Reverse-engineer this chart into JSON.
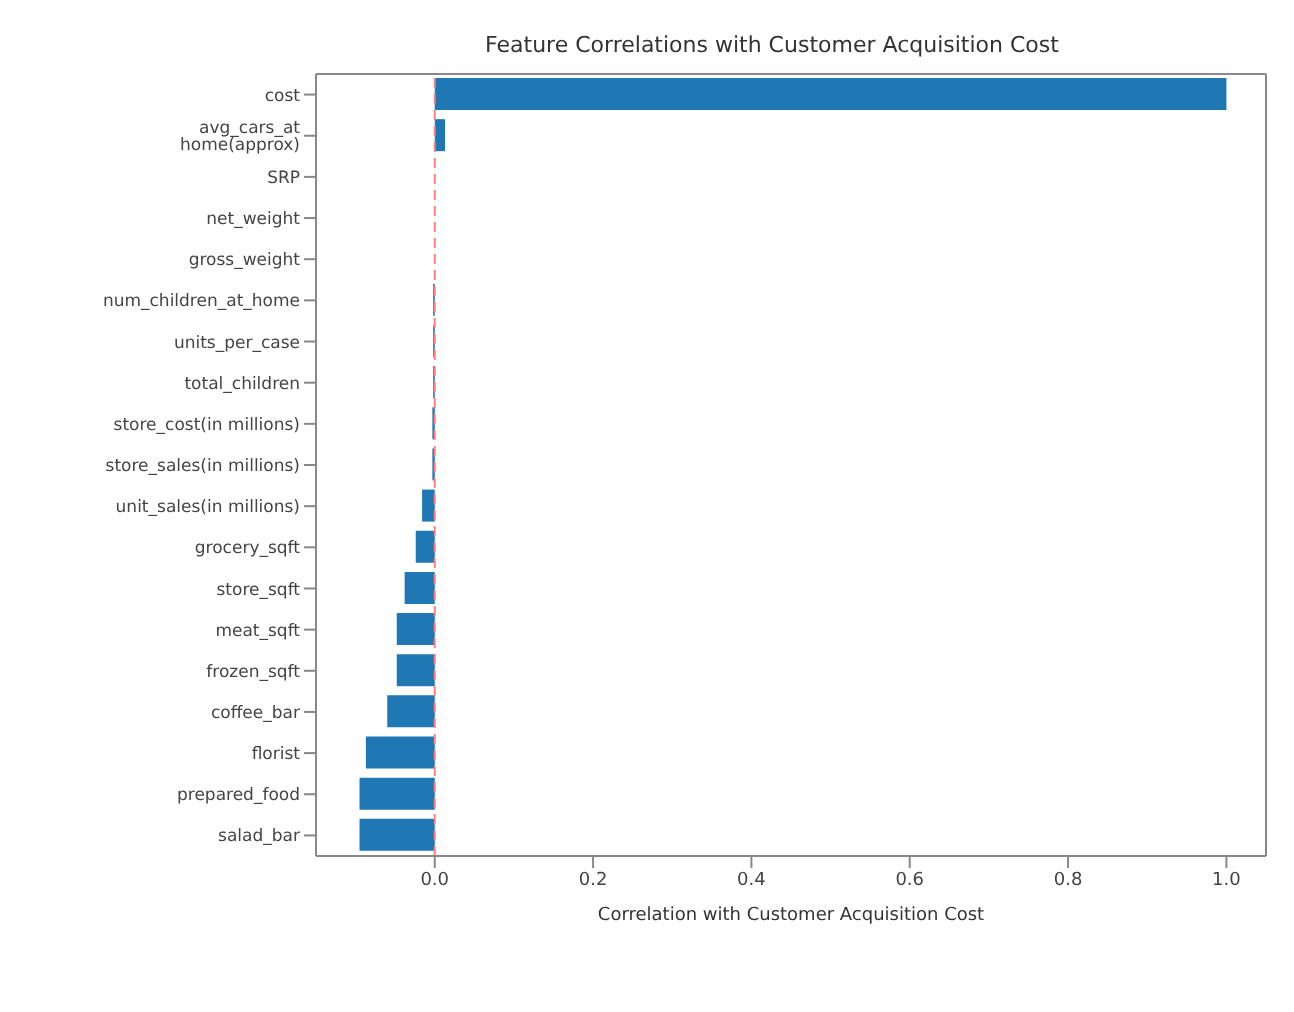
{
  "chart_data": {
    "type": "bar",
    "orientation": "horizontal",
    "title": "Feature Correlations with Customer Acquisition Cost",
    "xlabel": "Correlation with Customer Acquisition Cost",
    "categories": [
      "cost",
      "avg_cars_at home(approx)",
      "SRP",
      "net_weight",
      "gross_weight",
      "num_children_at_home",
      "units_per_case",
      "total_children",
      "store_cost(in millions)",
      "store_sales(in millions)",
      "unit_sales(in millions)",
      "grocery_sqft",
      "store_sqft",
      "meat_sqft",
      "frozen_sqft",
      "coffee_bar",
      "florist",
      "prepared_food",
      "salad_bar"
    ],
    "values": [
      1.0,
      0.013,
      null,
      0.0,
      0.0,
      -0.002,
      -0.002,
      -0.002,
      -0.003,
      -0.003,
      -0.016,
      -0.024,
      -0.038,
      -0.048,
      -0.048,
      -0.06,
      -0.087,
      -0.095,
      -0.095
    ],
    "color": "#1f77b4",
    "xlim": [
      -0.15,
      1.05
    ],
    "xticks": [
      {
        "value": 0,
        "label": "0.0"
      },
      0.2,
      0.4,
      0.6,
      0.8,
      {
        "value": 1,
        "label": "1.0"
      }
    ],
    "ref_lines": [
      {
        "axis": "x",
        "value": 0,
        "color": "#ff8080",
        "line_style": "dashed"
      }
    ],
    "grid": false,
    "legend": false
  }
}
